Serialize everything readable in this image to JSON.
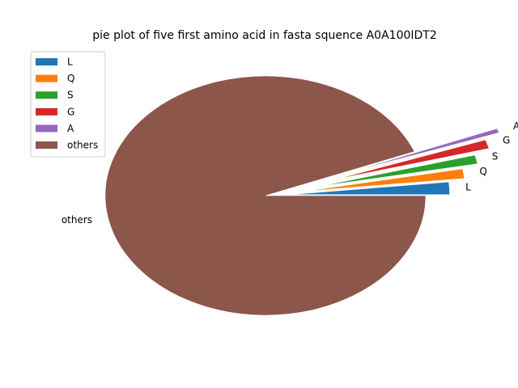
{
  "chart_data": {
    "type": "pie",
    "title": "pie plot of five first amino acid in fasta squence A0A100IDT2",
    "slices": [
      {
        "label": "L",
        "value": 1.7,
        "explode": 0.15,
        "color": "#1f77b4"
      },
      {
        "label": "Q",
        "value": 1.3,
        "explode": 0.25,
        "color": "#ff7f0e"
      },
      {
        "label": "S",
        "value": 1.2,
        "explode": 0.35,
        "color": "#2ca02c"
      },
      {
        "label": "G",
        "value": 1.2,
        "explode": 0.45,
        "color": "#d62728"
      },
      {
        "label": "A",
        "value": 0.6,
        "explode": 0.55,
        "color": "#9467bd"
      },
      {
        "label": "others",
        "value": 94.0,
        "explode": 0,
        "color": "#8c564b"
      }
    ],
    "start_angle_deg": 0,
    "counterclockwise": true,
    "legend": {
      "placement": "upper-left",
      "entries": [
        "L",
        "Q",
        "S",
        "G",
        "A",
        "others"
      ]
    }
  }
}
